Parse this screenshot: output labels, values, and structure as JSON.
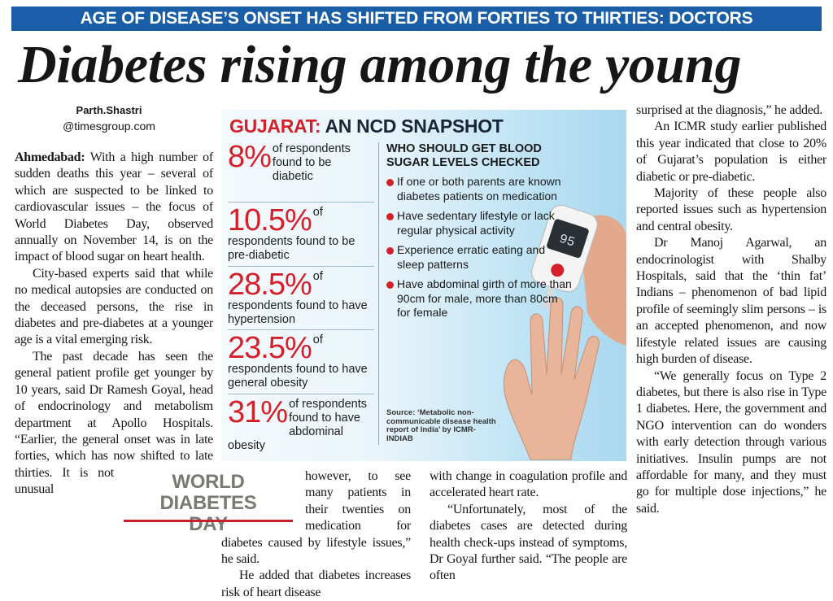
{
  "banner": "AGE OF DISEASE’S ONSET HAS SHIFTED FROM FORTIES TO THIRTIES: DOCTORS",
  "headline": "Diabetes rising among the young",
  "byline": {
    "name": "Parth.Shastri",
    "handle": "@timesgroup.com"
  },
  "article": {
    "dateline": "Ahmedabad:",
    "columns": [
      [
        "With a high number of sudden deaths this year – several of which are suspected to be linked to cardiovascular issues – the focus of World Diabetes Day, observed annually on November 14, is on the impact of blood sugar on heart health.",
        "City-based experts said that while no medical autopsies are conducted on the deceased persons, the rise in diabetes and pre-diabetes at a younger age is a vital emerging risk.",
        "The past decade has seen the general patient profile get younger by 10 years, said Dr Ramesh Goyal, head of endocrinology and metabolism department at Apollo Hospitals. “Earlier, the general onset was in late forties, which has now shifted to late thirties. It is not unusual"
      ],
      [
        "however, to see many patients in their twenties on medication for diabetes caused by lifestyle issues,” he said.",
        "He added that diabetes increases risk of heart disease"
      ],
      [
        "with change in coagulation profile and accelerated heart rate.",
        "“Unfortunately, most of the diabetes cases are detected during health check-ups instead of symptoms, Dr Goyal further said. “The people are often"
      ],
      [
        "surprised at the diagnosis,” he added.",
        "An ICMR study earlier published this year indicated that close to 20% of Gujarat’s population is either diabetic or pre-diabetic.",
        "Majority of these people also reported issues such as hypertension and central obesity.",
        "Dr Manoj Agarwal, an endocrinologist with Shalby Hospitals, said that the ‘thin fat’ Indians – phenomenon of bad lipid profile of seemingly slim persons – is an accepted phenomenon, and now lifestyle related issues are causing high burden of disease.",
        "“We generally focus on Type 2 diabetes, but there is also rise in Type 1 diabetes. Here, the government and NGO intervention can do wonders with early detection through various initiatives. Insulin pumps are not affordable for many, and they must go for multiple dose injections,” he said."
      ]
    ]
  },
  "infobox": {
    "title_prefix": "GUJARAT:",
    "title": "AN NCD SNAPSHOT",
    "stats": [
      {
        "figure": "8%",
        "text": "of respondents found to be diabetic"
      },
      {
        "figure": "10.5%",
        "text": "of respondents found to be pre-diabetic"
      },
      {
        "figure": "28.5%",
        "text": "of respondents found to have hypertension"
      },
      {
        "figure": "23.5%",
        "text": "of respondents found to have general obesity"
      },
      {
        "figure": "31%",
        "text": "of respondents found to have abdominal obesity"
      }
    ],
    "checklist_title": "WHO SHOULD GET BLOOD SUGAR LEVELS CHECKED",
    "checklist": [
      "If one or both parents are known diabetes patients on medication",
      "Have sedentary lifestyle or lack regular physical activity",
      "Experience erratic eating and sleep patterns",
      "Have abdominal girth of more than 90cm for male, more than 80cm for female"
    ],
    "source": "Source: ‘Metabolic non-communicable disease health report of India’ by ICMR-INDIAB",
    "meter_reading": "95"
  },
  "logo": {
    "line1": "WORLD DIABETES",
    "line2": "DAY"
  }
}
